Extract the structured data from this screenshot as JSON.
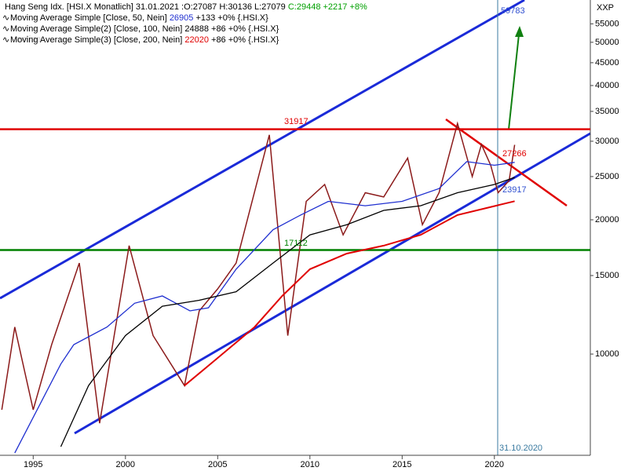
{
  "chart_data": {
    "type": "line",
    "header": {
      "title": "Hang Seng Idx. [HSI.X  Monatlich] 31.01.2021",
      "ohl": ":O:27087 H:30136 L:27079",
      "close": "C:29448 +2217 +8%"
    },
    "axis_code": "XXP",
    "cursor_date": "31.10.2020",
    "log_scale": true,
    "grid": false,
    "xlim": [
      1993.2,
      2025.2
    ],
    "xticks": [
      1995,
      2000,
      2005,
      2010,
      2015,
      2020
    ],
    "ylim": [
      5930,
      62200
    ],
    "yticks": [
      10000,
      15000,
      20000,
      25000,
      30000,
      35000,
      40000,
      45000,
      50000,
      55000
    ],
    "series": [
      {
        "name": "Hang Seng Idx.",
        "color": "#8b1a1a",
        "x": [
          1993.3,
          1994.0,
          1995.0,
          1996.0,
          1997.5,
          1998.6,
          2000.2,
          2001.5,
          2003.2,
          2004.0,
          2005.0,
          2006.0,
          2007.8,
          2008.8,
          2009.8,
          2010.8,
          2011.8,
          2013.0,
          2014.0,
          2015.3,
          2016.1,
          2017.0,
          2018.0,
          2018.8,
          2019.3,
          2019.8,
          2020.2,
          2020.8,
          2021.1
        ],
        "values": [
          7500,
          11500,
          7500,
          10500,
          16000,
          7000,
          17500,
          11000,
          8500,
          12500,
          14000,
          16000,
          31000,
          11000,
          22000,
          24000,
          18500,
          23000,
          22500,
          27500,
          19500,
          23000,
          32900,
          25000,
          29500,
          26500,
          23000,
          24500,
          29448
        ]
      },
      {
        "name": "Moving Average Simple [Close, 50, Nein]",
        "color": "#1f2fd0",
        "change": "+133 +0% {.HSI.X}",
        "x": [
          1994.0,
          1996.5,
          1997.2,
          1999.0,
          2000.5,
          2002.0,
          2003.5,
          2004.5,
          2006.0,
          2008.0,
          2009.5,
          2011.0,
          2013.0,
          2015.0,
          2017.0,
          2018.5,
          2020.0,
          2021.1
        ],
        "values": [
          6000,
          9500,
          10500,
          11500,
          13000,
          13500,
          12500,
          12700,
          15500,
          19000,
          20500,
          22000,
          21500,
          22000,
          23500,
          27000,
          26500,
          26905
        ]
      },
      {
        "name": "Moving Average Simple(2) [Close, 100, Nein]",
        "color": "#000000",
        "change": "+86 +0% {.HSI.X}",
        "x": [
          1996.5,
          1998.0,
          2000.0,
          2002.0,
          2004.0,
          2006.0,
          2008.0,
          2010.0,
          2012.0,
          2014.0,
          2016.0,
          2018.0,
          2020.0,
          2021.1
        ],
        "values": [
          6200,
          8500,
          11000,
          12800,
          13200,
          13800,
          16000,
          18500,
          19500,
          21000,
          21500,
          23000,
          24000,
          24888
        ]
      },
      {
        "name": "Moving Average Simple(3) [Close, 200, Nein]",
        "color": "#e00000",
        "change": "+86 +0% {.HSI.X}",
        "x": [
          2003.2,
          2005.0,
          2007.0,
          2008.5,
          2010.0,
          2012.0,
          2014.0,
          2016.0,
          2018.0,
          2021.1
        ],
        "values": [
          8500,
          9800,
          11500,
          13500,
          15500,
          16800,
          17500,
          18500,
          20500,
          22020
        ]
      }
    ],
    "levels": [
      {
        "value": 31917,
        "color": "#e00000"
      },
      {
        "value": 17112,
        "color": "#008000"
      }
    ],
    "annotations": [
      {
        "value": 59783,
        "color": "#3050d0"
      },
      {
        "value": 31917,
        "color": "#e00000"
      },
      {
        "value": 27266,
        "color": "#e00000"
      },
      {
        "value": 23917,
        "color": "#3050d0"
      },
      {
        "value": 17112,
        "color": "#008000"
      }
    ]
  }
}
